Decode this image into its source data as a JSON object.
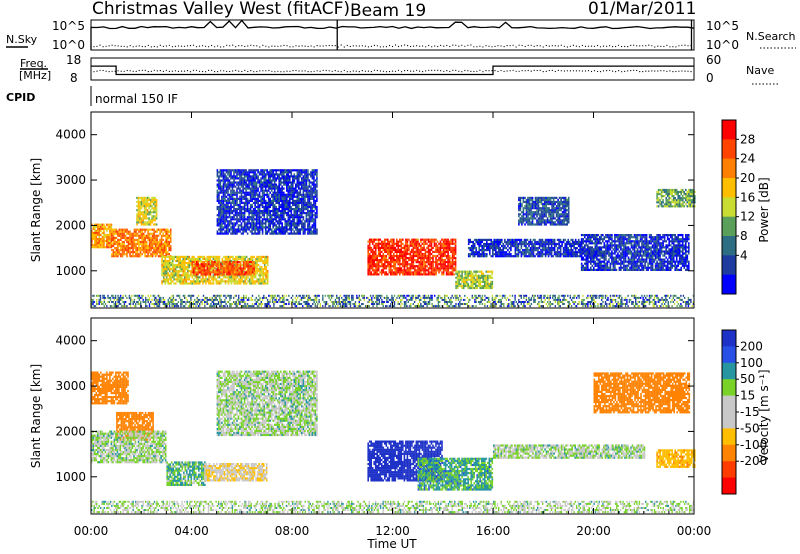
{
  "header": {
    "title": "Christmas Valley West (fitACF)",
    "beam": "Beam 19",
    "date": "01/Mar/2011"
  },
  "noise_panel": {
    "left_label": "N.Sky",
    "right_label": "N.Search",
    "left_ticks": [
      "10^5",
      "10^0"
    ],
    "right_ticks": [
      "10^5",
      "10^0"
    ]
  },
  "freq_panel": {
    "left_label_1": "Freq.",
    "left_label_2": "[MHz]",
    "right_label": "Nave",
    "left_ticks": [
      "18",
      "8"
    ],
    "right_ticks": [
      "60",
      "0"
    ]
  },
  "cpid": {
    "label": "CPID",
    "value": "normal 150 IF"
  },
  "power_panel": {
    "ylabel": "Slant Range [km]",
    "yticks": [
      "4000",
      "3000",
      "2000",
      "1000"
    ],
    "colorbar_label": "Power [dB]",
    "colorbar_ticks": [
      "28",
      "24",
      "20",
      "16",
      "12",
      "8",
      "4"
    ],
    "colorbar_colors": [
      "#ff0000",
      "#ff4400",
      "#ff8000",
      "#ffbf00",
      "#c8dc32",
      "#5aa05a",
      "#2d6e82",
      "#1e3ca0",
      "#0000ff"
    ]
  },
  "velocity_panel": {
    "ylabel": "Slant Range [km]",
    "yticks": [
      "4000",
      "3000",
      "2000",
      "1000"
    ],
    "colorbar_label": "Velocity [m s⁻¹]",
    "colorbar_ticks": [
      "200",
      "100",
      "50",
      "15",
      "-15",
      "-50",
      "-100",
      "-200"
    ],
    "colorbar_colors": [
      "#1e32c8",
      "#2850e6",
      "#2896a0",
      "#78d228",
      "#c8c8c8",
      "#c8c8c8",
      "#ffbe00",
      "#ff8200",
      "#ff3c00",
      "#ff0000"
    ]
  },
  "xaxis": {
    "ticks": [
      "00:00",
      "04:00",
      "08:00",
      "12:00",
      "16:00",
      "20:00",
      "00:00"
    ],
    "label": "Time UT"
  },
  "chart_data": {
    "type": "heatmap",
    "x_range_hours": [
      0,
      24
    ],
    "y_range_km": [
      180,
      4500
    ],
    "power_regions": [
      {
        "t0": 0.0,
        "t1": 0.8,
        "r0": 1500,
        "r1": 2000,
        "power_db": 22
      },
      {
        "t0": 0.8,
        "t1": 3.2,
        "r0": 1300,
        "r1": 1900,
        "power_db": 24
      },
      {
        "t0": 1.8,
        "t1": 2.6,
        "r0": 2000,
        "r1": 2600,
        "power_db": 18
      },
      {
        "t0": 2.8,
        "t1": 7.0,
        "r0": 700,
        "r1": 1300,
        "power_db": 18
      },
      {
        "t0": 4.0,
        "t1": 6.5,
        "r0": 900,
        "r1": 1200,
        "power_db": 26
      },
      {
        "t0": 5.0,
        "t1": 9.0,
        "r0": 1800,
        "r1": 3200,
        "power_db": 6
      },
      {
        "t0": 11.0,
        "t1": 14.5,
        "r0": 900,
        "r1": 1700,
        "power_db": 28
      },
      {
        "t0": 14.5,
        "t1": 16.0,
        "r0": 600,
        "r1": 1000,
        "power_db": 16
      },
      {
        "t0": 15.0,
        "t1": 19.5,
        "r0": 1300,
        "r1": 1700,
        "power_db": 6
      },
      {
        "t0": 19.5,
        "t1": 23.8,
        "r0": 1000,
        "r1": 1800,
        "power_db": 6
      },
      {
        "t0": 17.0,
        "t1": 19.0,
        "r0": 2000,
        "r1": 2600,
        "power_db": 8
      },
      {
        "t0": 22.5,
        "t1": 24.0,
        "r0": 2400,
        "r1": 2800,
        "power_db": 14
      }
    ],
    "velocity_regions": [
      {
        "t0": 0.0,
        "t1": 1.5,
        "r0": 2600,
        "r1": 3300,
        "vel": -200
      },
      {
        "t0": 1.0,
        "t1": 2.5,
        "r0": 1800,
        "r1": 2400,
        "vel": -200
      },
      {
        "t0": 0.0,
        "t1": 3.0,
        "r0": 1300,
        "r1": 2000,
        "vel": 0
      },
      {
        "t0": 3.0,
        "t1": 4.5,
        "r0": 800,
        "r1": 1300,
        "vel": 30
      },
      {
        "t0": 4.5,
        "t1": 7.0,
        "r0": 900,
        "r1": 1300,
        "vel": -70
      },
      {
        "t0": 5.0,
        "t1": 9.0,
        "r0": 1900,
        "r1": 3300,
        "vel": 0
      },
      {
        "t0": 11.0,
        "t1": 14.0,
        "r0": 900,
        "r1": 1800,
        "vel": 200
      },
      {
        "t0": 13.0,
        "t1": 16.0,
        "r0": 700,
        "r1": 1400,
        "vel": 40
      },
      {
        "t0": 16.0,
        "t1": 22.0,
        "r0": 1400,
        "r1": 1700,
        "vel": 0
      },
      {
        "t0": 20.0,
        "t1": 23.8,
        "r0": 2400,
        "r1": 3300,
        "vel": -200
      },
      {
        "t0": 22.5,
        "t1": 24.0,
        "r0": 1200,
        "r1": 1600,
        "vel": -120
      }
    ],
    "noise_sky_level": 0.75,
    "freq_step": [
      {
        "t0": 0.0,
        "t1": 1.0,
        "freq_mhz": 14.3
      },
      {
        "t0": 1.0,
        "t1": 16.0,
        "freq_mhz": 10.5
      },
      {
        "t0": 16.0,
        "t1": 24.0,
        "freq_mhz": 14.3
      }
    ]
  }
}
